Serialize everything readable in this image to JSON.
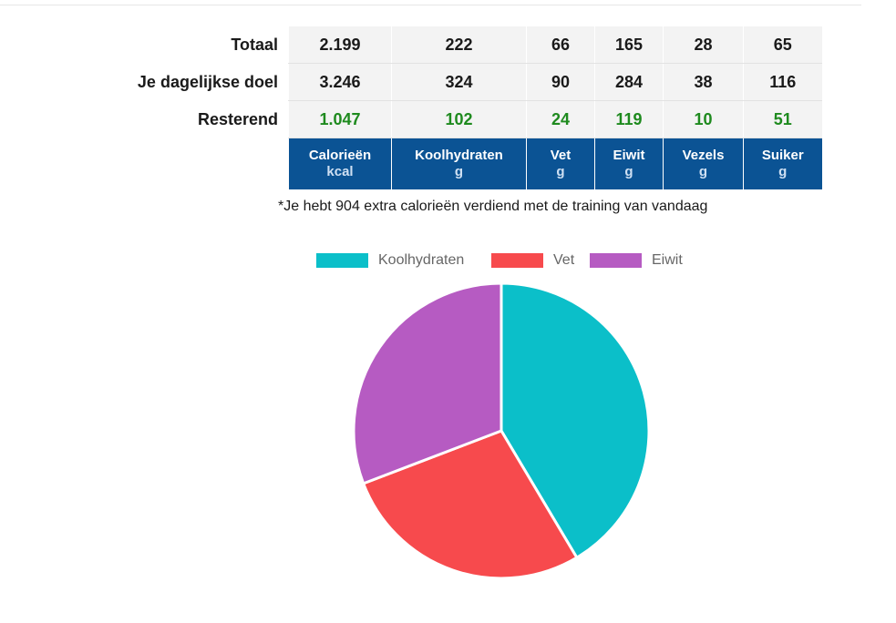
{
  "table": {
    "rows": [
      {
        "label": "Totaal",
        "values": [
          "2.199",
          "222",
          "66",
          "165",
          "28",
          "65"
        ]
      },
      {
        "label": "Je dagelijkse doel",
        "values": [
          "3.246",
          "324",
          "90",
          "284",
          "38",
          "116"
        ]
      },
      {
        "label": "Resterend",
        "values": [
          "1.047",
          "102",
          "24",
          "119",
          "10",
          "51"
        ]
      }
    ],
    "columns": [
      {
        "name": "Calorieën",
        "unit": "kcal"
      },
      {
        "name": "Koolhydraten",
        "unit": "g"
      },
      {
        "name": "Vet",
        "unit": "g"
      },
      {
        "name": "Eiwit",
        "unit": "g"
      },
      {
        "name": "Vezels",
        "unit": "g"
      },
      {
        "name": "Suiker",
        "unit": "g"
      }
    ]
  },
  "footnote": "*Je hebt 904 extra calorieën verdiend met de training van vandaag",
  "colors": {
    "header_bg": "#0b5394",
    "remaining_text": "#1e8a1e",
    "carbs": "#0bbfc9",
    "fat": "#f74a4d",
    "protein": "#b65bc2"
  },
  "chart_data": {
    "type": "pie",
    "categories": [
      "Koolhydraten",
      "Vet",
      "Eiwit"
    ],
    "values": [
      222,
      148.5,
      165
    ],
    "colors": [
      "#0bbfc9",
      "#f74a4d",
      "#b65bc2"
    ],
    "legend": "top"
  }
}
